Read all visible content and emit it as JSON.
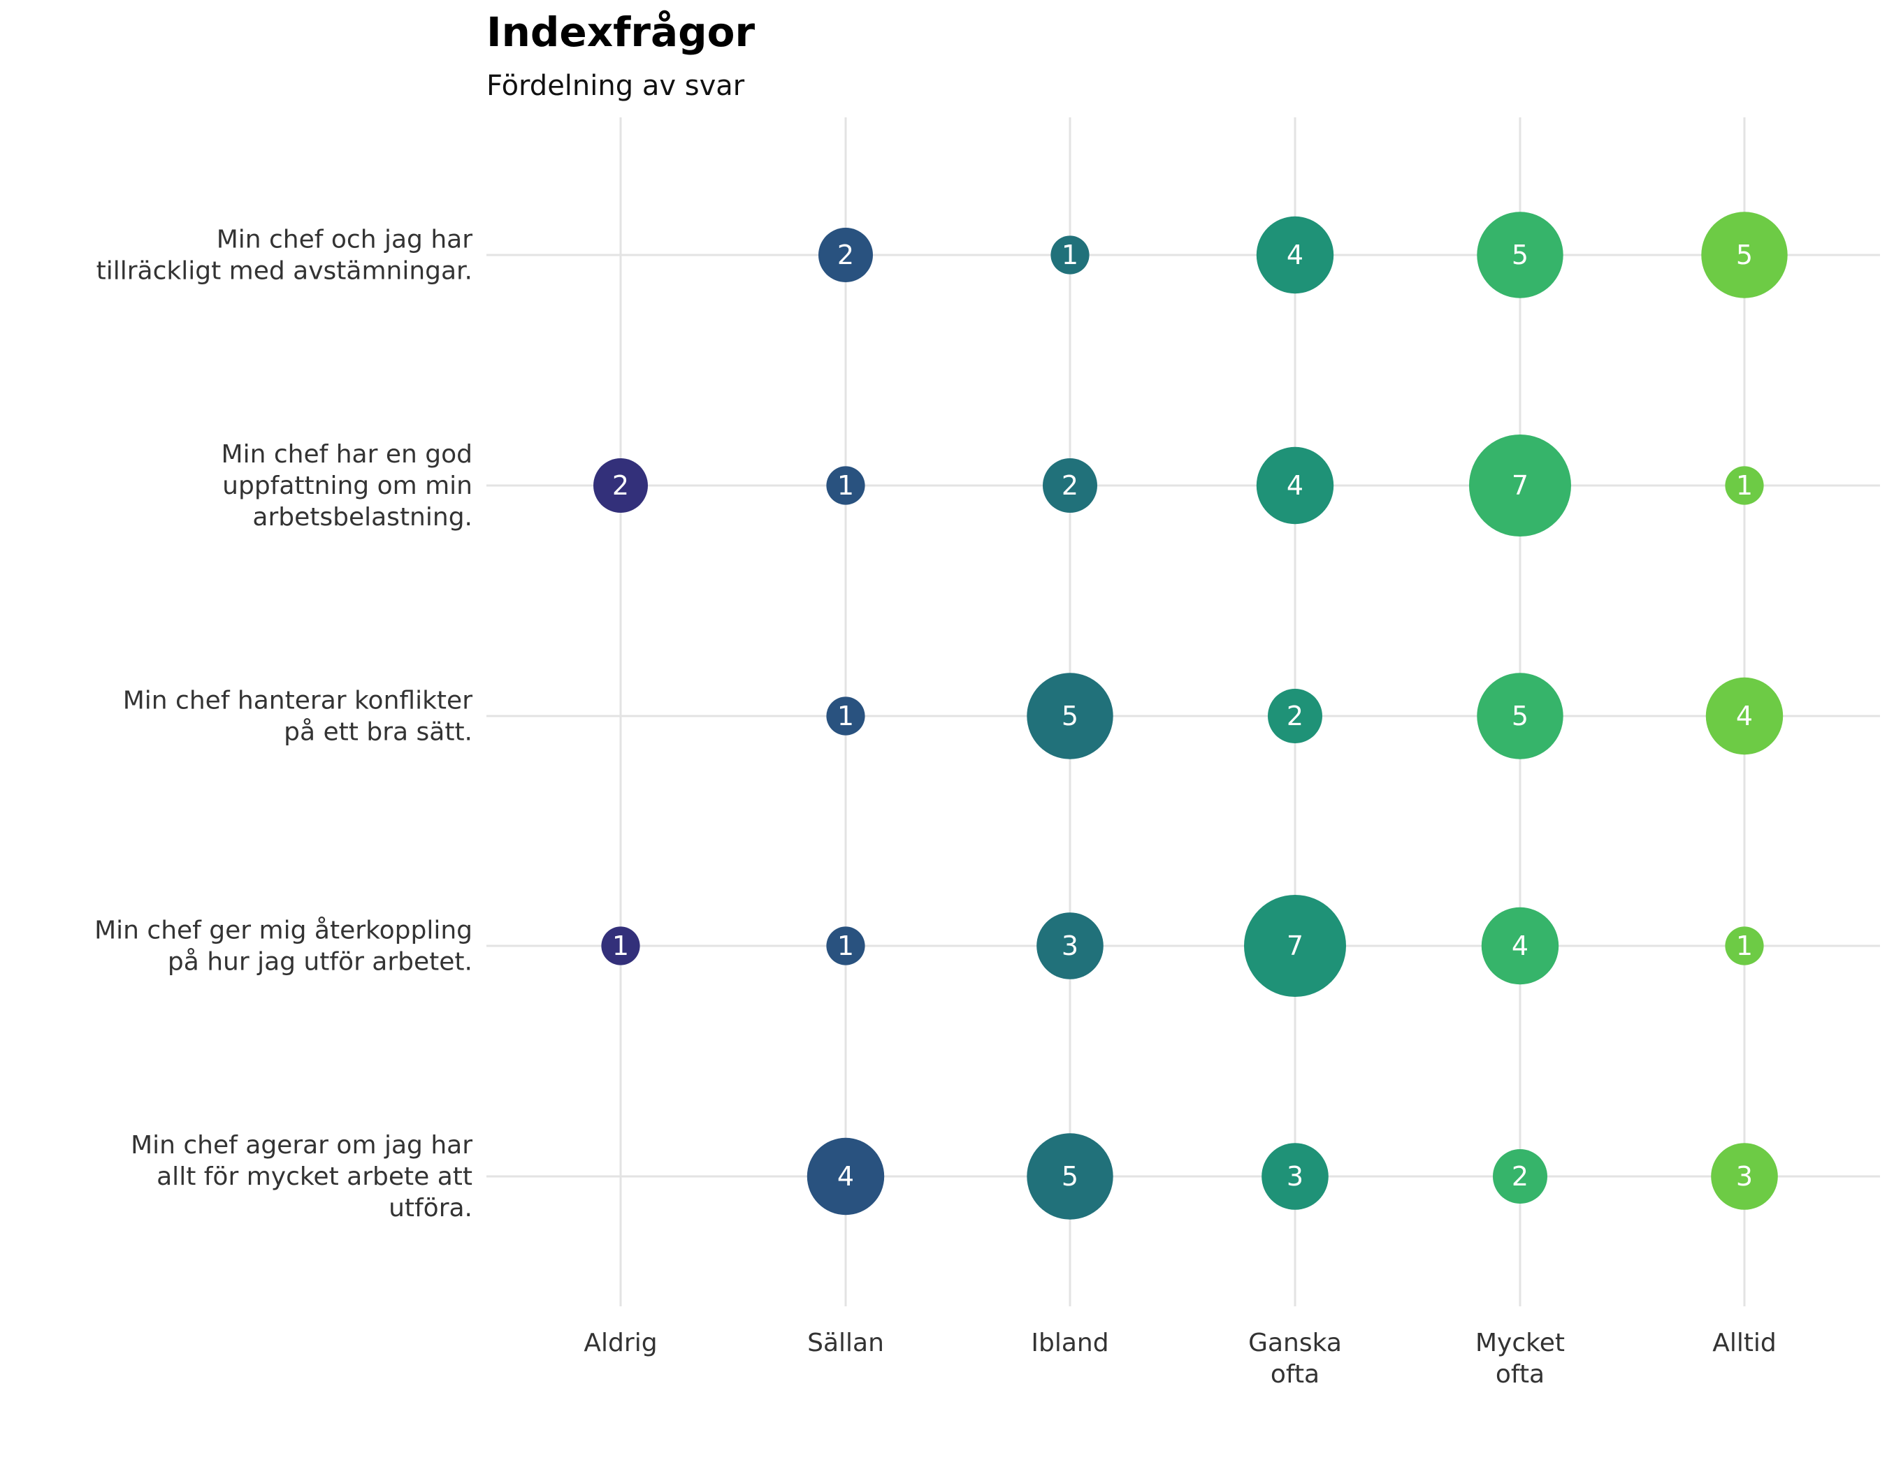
{
  "chart_data": {
    "type": "scatter",
    "title": "Indexfrågor",
    "subtitle": "Fördelning av svar",
    "categories": [
      "Aldrig",
      "Sällan",
      "Ibland",
      "Ganska\nofta",
      "Mycket\nofta",
      "Alltid"
    ],
    "questions": [
      "Min chef och jag har\ntillräckligt med avstämningar.",
      "Min chef har en god\nuppfattning om min\narbetsbelastning.",
      "Min chef hanterar konflikter\npå ett bra sätt.",
      "Min chef ger mig återkoppling\npå hur jag utför arbetet.",
      "Min chef agerar om jag har\nallt för mycket arbete att\nutföra."
    ],
    "values": [
      [
        null,
        2,
        1,
        4,
        5,
        5
      ],
      [
        2,
        1,
        2,
        4,
        7,
        1
      ],
      [
        null,
        1,
        5,
        2,
        5,
        4
      ],
      [
        1,
        1,
        3,
        7,
        4,
        1
      ],
      [
        null,
        4,
        5,
        3,
        2,
        3
      ]
    ],
    "colors": [
      "#33307a",
      "#29527f",
      "#21717a",
      "#1f9277",
      "#36b46a",
      "#6dcb45"
    ],
    "grid": true,
    "legend": "none"
  }
}
